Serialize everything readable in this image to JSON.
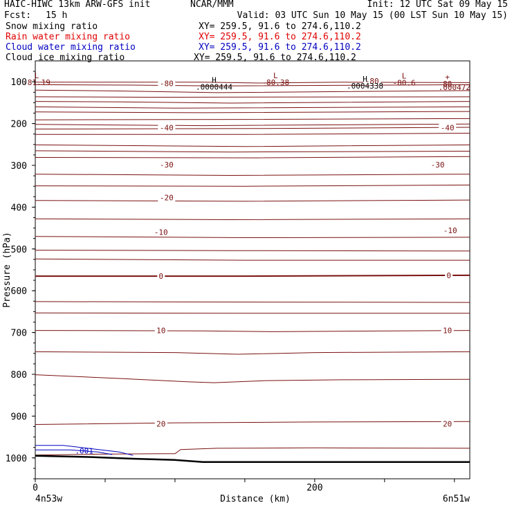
{
  "header": {
    "model": "HAIC-HIWC 13km ARW-GFS init",
    "org": "NCAR/MMM",
    "init": "Init: 12 UTC Sat 09 May 15",
    "fcst_label": "Fcst:",
    "fcst_value": "15 h",
    "valid": "Valid: 03 UTC Sun 10 May 15 (00 LST Sun 10 May 15)"
  },
  "fields": [
    {
      "name": "Snow mixing ratio",
      "xy": "XY= 259.5, 91.6 to 274.6,110.2",
      "color": "#000000"
    },
    {
      "name": "Rain water mixing ratio",
      "xy": "XY= 259.5, 91.6 to 274.6,110.2",
      "color": "#e00000"
    },
    {
      "name": "Cloud water mixing ratio",
      "xy": "XY= 259.5, 91.6 to 274.6,110.2",
      "color": "#0000c0"
    },
    {
      "name": "Cloud ice mixing ratio",
      "xy": "XY= 259.5, 91.6 to 274.6,110.2",
      "color": "#000000"
    }
  ],
  "chart_data": {
    "type": "cross-section contour",
    "ylabel": "Pressure (hPa)",
    "xlabel": "Distance (km)",
    "y_axis": {
      "ticks": [
        100,
        200,
        300,
        400,
        500,
        600,
        700,
        800,
        900,
        1000
      ],
      "range": [
        1050,
        50
      ],
      "scale": "linear"
    },
    "x_axis": {
      "ticks": [
        0,
        200
      ],
      "range": [
        0,
        311
      ]
    },
    "endpoints": {
      "left": "4n53w",
      "right": "6n51w"
    },
    "contour_color": "#7a1010",
    "cloud_water_color": "#0000c0",
    "contours": [
      {
        "level": -80,
        "label": "-80",
        "label_points": [
          [
            94,
            104
          ],
          [
            241,
            98
          ]
        ]
      },
      {
        "level": -40,
        "label": "-40",
        "label_points": [
          [
            94,
            210
          ],
          [
            295,
            210
          ]
        ]
      },
      {
        "level": -30,
        "label": "-30",
        "label_points": [
          [
            94,
            298
          ],
          [
            288,
            298
          ]
        ]
      },
      {
        "level": -20,
        "label": "-20",
        "label_points": [
          [
            94,
            377
          ]
        ]
      },
      {
        "level": -10,
        "label": "-10",
        "label_points": [
          [
            90,
            460
          ],
          [
            297,
            456
          ]
        ]
      },
      {
        "level": 0,
        "label": "0",
        "label_points": [
          [
            90,
            565
          ],
          [
            296,
            563
          ]
        ]
      },
      {
        "level": 10,
        "label": "10",
        "label_points": [
          [
            90,
            695
          ],
          [
            295,
            695
          ]
        ]
      },
      {
        "level": 20,
        "label": "20",
        "label_points": [
          [
            90,
            918
          ],
          [
            295,
            918
          ]
        ]
      }
    ],
    "extrema": [
      {
        "kind": "L",
        "value": "-81.19",
        "x": 1,
        "p": 91
      },
      {
        "kind": "H",
        "value": ".0000444",
        "x": 128,
        "p": 102
      },
      {
        "kind": "L",
        "value": "-80.38",
        "x": 172,
        "p": 91
      },
      {
        "kind": "H",
        "value": ".0004338",
        "x": 236,
        "p": 100
      },
      {
        "kind": "L",
        "value": "-80.6",
        "x": 264,
        "p": 92
      },
      {
        "kind": "+",
        "value": "80",
        "x": 295,
        "p": 95
      },
      {
        "kind": "",
        "value": ".000472",
        "x": 300,
        "p": 103
      }
    ],
    "cloud_water": {
      "label": ".001",
      "label_point": [
        35,
        983
      ]
    }
  }
}
